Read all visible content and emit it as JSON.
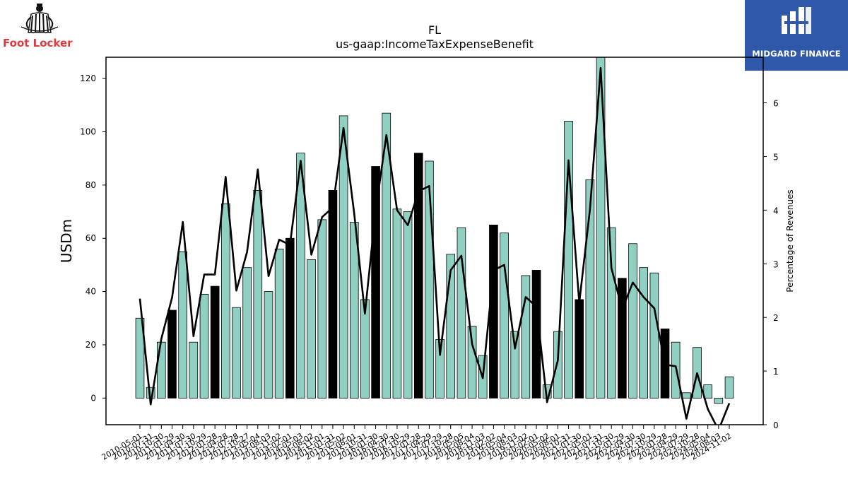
{
  "logos": {
    "left": {
      "text": "Foot Locker",
      "color": "#e03a3e"
    },
    "right": {
      "text": "MIDGARD FINANCE",
      "background": "#2f58a8"
    }
  },
  "chart_data": {
    "type": "bar",
    "title": "FL",
    "subtitle": "us-gaap:IncomeTaxExpenseBenefit",
    "ylabel": "USDm",
    "y2label": "Percentage of Revenues",
    "ylim": [
      -10,
      128
    ],
    "y2lim": [
      0,
      6.85
    ],
    "yticks": [
      0,
      20,
      40,
      60,
      80,
      100,
      120
    ],
    "y2ticks": [
      0,
      1,
      2,
      3,
      4,
      5,
      6
    ],
    "colors": {
      "bar": "#8fd0c3",
      "bar_highlight": "#000000",
      "line": "#000000"
    },
    "categories": [
      "2010-05-01",
      "2010-07-31",
      "2010-10-30",
      "2011-01-29",
      "2011-04-30",
      "2011-07-30",
      "2011-10-29",
      "2012-01-28",
      "2012-04-28",
      "2012-07-28",
      "2012-10-27",
      "2013-05-04",
      "2013-08-03",
      "2013-11-02",
      "2014-02-01",
      "2014-05-03",
      "2014-08-02",
      "2014-11-01",
      "2015-01-31",
      "2015-05-02",
      "2015-08-01",
      "2015-10-31",
      "2016-01-30",
      "2016-04-30",
      "2016-07-30",
      "2016-10-29",
      "2017-01-28",
      "2017-04-29",
      "2017-07-29",
      "2017-10-28",
      "2018-05-05",
      "2018-08-04",
      "2018-11-03",
      "2019-02-02",
      "2019-05-04",
      "2019-08-03",
      "2019-11-02",
      "2020-02-01",
      "2020-05-02",
      "2020-08-01",
      "2020-10-31",
      "2021-01-30",
      "2021-05-01",
      "2021-07-31",
      "2021-10-30",
      "2022-01-29",
      "2022-04-30",
      "2022-07-30",
      "2022-10-29",
      "2023-01-28",
      "2023-04-29",
      "2023-07-29",
      "2023-10-28",
      "2024-05-04",
      "2024-08-03",
      "2024-11-02"
    ],
    "series": [
      {
        "type": "bar",
        "values": [
          30,
          4,
          21,
          33,
          55,
          21,
          39,
          42,
          73,
          34,
          49,
          78,
          40,
          56,
          60,
          92,
          52,
          67,
          78,
          106,
          66,
          37,
          87,
          107,
          71,
          70,
          92,
          89,
          22,
          54,
          64,
          27,
          16,
          65,
          62,
          25,
          46,
          48,
          5,
          25,
          104,
          37,
          82,
          130,
          64,
          45,
          58,
          49,
          47,
          26,
          21,
          2,
          19,
          5,
          -2,
          8
        ],
        "highlight": [
          false,
          false,
          false,
          true,
          false,
          false,
          false,
          true,
          false,
          false,
          false,
          false,
          false,
          false,
          true,
          false,
          false,
          false,
          true,
          false,
          false,
          false,
          true,
          false,
          false,
          false,
          true,
          false,
          false,
          false,
          false,
          false,
          false,
          true,
          false,
          false,
          false,
          true,
          false,
          false,
          false,
          true,
          false,
          false,
          false,
          true,
          false,
          false,
          false,
          true,
          false,
          false,
          false,
          false,
          false,
          false
        ]
      },
      {
        "type": "line",
        "axis": "right",
        "values": [
          2.35,
          0.38,
          1.6,
          2.37,
          3.78,
          1.65,
          2.8,
          2.8,
          4.62,
          2.5,
          3.22,
          4.76,
          2.77,
          3.45,
          3.35,
          4.92,
          3.17,
          3.87,
          4.05,
          5.53,
          3.93,
          2.07,
          4.0,
          5.4,
          4.0,
          3.72,
          4.35,
          4.45,
          1.3,
          2.88,
          3.15,
          1.5,
          0.87,
          2.88,
          2.98,
          1.42,
          2.38,
          2.2,
          0.42,
          1.2,
          4.93,
          2.27,
          4.02,
          6.65,
          2.92,
          2.15,
          2.65,
          2.38,
          2.17,
          1.12,
          1.09,
          0.11,
          0.96,
          0.29,
          -0.1,
          0.4
        ]
      }
    ]
  }
}
